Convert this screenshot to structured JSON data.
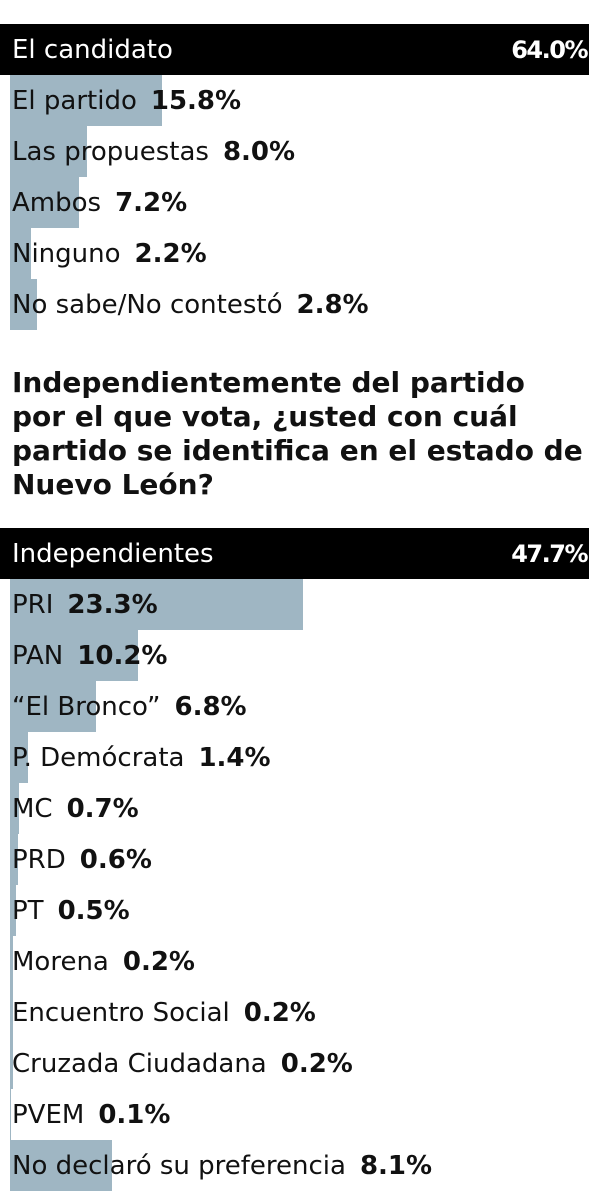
{
  "chart_data": [
    {
      "type": "bar",
      "orientation": "horizontal",
      "categories": [
        "El candidato",
        "El partido",
        "Las propuestas",
        "Ambos",
        "Ninguno",
        "No sabe/No contestó"
      ],
      "values": [
        64.0,
        15.8,
        8.0,
        7.2,
        2.2,
        2.8
      ],
      "value_labels": [
        "64.0%",
        "15.8%",
        "8.0%",
        "7.2%",
        "2.2%",
        "2.8%"
      ],
      "xlim": [
        0,
        60
      ],
      "color": "#9fb6c3",
      "highlight_color": "#000000"
    },
    {
      "type": "bar",
      "orientation": "horizontal",
      "title": "Independientemente del partido por el que vota, ¿usted con cuál partido se identifica en el estado de Nuevo León?",
      "categories": [
        "Independientes",
        "PRI",
        "PAN",
        "“El Bronco”",
        "P. Demócrata",
        "MC",
        "PRD",
        "PT",
        "Morena",
        "Encuentro Social",
        "Cruzada Ciudadana",
        "PVEM",
        "No declaró su preferencia"
      ],
      "values": [
        47.7,
        23.3,
        10.2,
        6.8,
        1.4,
        0.7,
        0.6,
        0.5,
        0.2,
        0.2,
        0.2,
        0.1,
        8.1
      ],
      "value_labels": [
        "47.7%",
        "23.3%",
        "10.2%",
        "6.8%",
        "1.4%",
        "0.7%",
        "0.6%",
        "0.5%",
        "0.2%",
        "0.2%",
        "0.2%",
        "0.1%",
        "8.1%"
      ],
      "xlim": [
        0,
        46
      ],
      "color": "#9fb6c3",
      "highlight_color": "#000000"
    }
  ]
}
